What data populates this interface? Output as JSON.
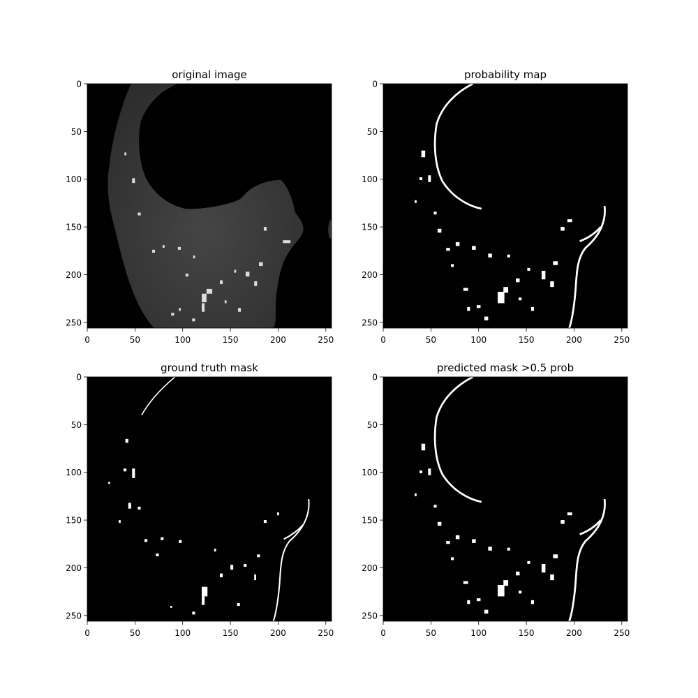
{
  "figure": {
    "background": "#ffffff",
    "panel_background": "#000000",
    "foreground": "#ffffff",
    "tick_color": "#000000"
  },
  "chart_data": [
    {
      "type": "heatmap",
      "title": "original image",
      "colormap": "gray",
      "image_size": [
        256,
        256
      ],
      "xlim": [
        0,
        256
      ],
      "ylim": [
        256,
        0
      ],
      "xticks": [
        0,
        50,
        100,
        150,
        200,
        250
      ],
      "yticks": [
        0,
        50,
        100,
        150,
        200,
        250
      ],
      "content": "grayscale CT slice of lung tissue"
    },
    {
      "type": "heatmap",
      "title": "probability map",
      "colormap": "gray",
      "image_size": [
        256,
        256
      ],
      "xlim": [
        0,
        256
      ],
      "ylim": [
        256,
        0
      ],
      "xticks": [
        0,
        50,
        100,
        150,
        200,
        250
      ],
      "yticks": [
        0,
        50,
        100,
        150,
        200,
        250
      ]
    },
    {
      "type": "heatmap",
      "title": "ground truth mask",
      "colormap": "gray",
      "image_size": [
        256,
        256
      ],
      "xlim": [
        0,
        256
      ],
      "ylim": [
        256,
        0
      ],
      "xticks": [
        0,
        50,
        100,
        150,
        200,
        250
      ],
      "yticks": [
        0,
        50,
        100,
        150,
        200,
        250
      ]
    },
    {
      "type": "heatmap",
      "title": "predicted mask >0.5 prob",
      "colormap": "gray",
      "image_size": [
        256,
        256
      ],
      "xlim": [
        0,
        256
      ],
      "ylim": [
        256,
        0
      ],
      "xticks": [
        0,
        50,
        100,
        150,
        200,
        250
      ],
      "yticks": [
        0,
        50,
        100,
        150,
        200,
        250
      ]
    }
  ]
}
